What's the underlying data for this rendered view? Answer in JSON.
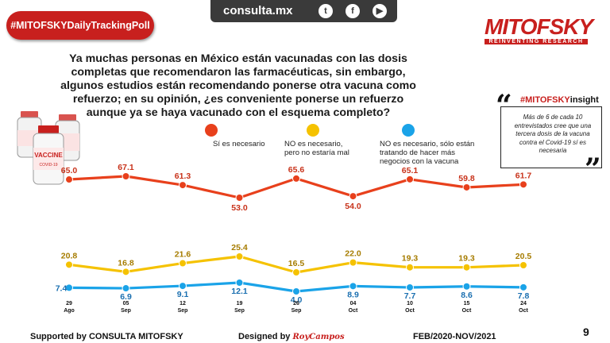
{
  "header": {
    "site": "consulta.mx",
    "social_icons": [
      "twitter-icon",
      "facebook-icon",
      "youtube-icon"
    ],
    "social_glyphs": [
      "t",
      "f",
      "▶"
    ],
    "hashtag": "#MITOFSKYDailyTrackingPoll",
    "brand_name": "MITOFSKY",
    "brand_tagline": "REINVENTING RESEARCH"
  },
  "question": "Ya muchas personas en México están vacunadas con las dosis completas que recomendaron las farmacéuticas, sin embargo, algunos estudios están recomendando ponerse otra vacuna como refuerzo; en su opinión, ¿es conveniente ponerse un refuerzo aunque ya se haya vacunado con el esquema completo?",
  "insight": {
    "label_prefix": "#MITOFSKY",
    "label_suffix": "insight",
    "text": "Más de 6 de cada 10 entrevistados cree que una tercera dosis de la vacuna contra el Covid-19 sí es necesaria"
  },
  "vaccine_label": "VACCINE",
  "vaccine_sub": "COVID-19",
  "colors": {
    "red": "#e8401c",
    "yellow": "#f5c200",
    "blue": "#1aa3e8",
    "brand": "#c8201e"
  },
  "chart_data": {
    "type": "line",
    "categories": [
      {
        "day": "29",
        "month": "Ago"
      },
      {
        "day": "05",
        "month": "Sep"
      },
      {
        "day": "12",
        "month": "Sep"
      },
      {
        "day": "19",
        "month": "Sep"
      },
      {
        "day": "26",
        "month": "Sep"
      },
      {
        "day": "04",
        "month": "Oct"
      },
      {
        "day": "10",
        "month": "Oct"
      },
      {
        "day": "15",
        "month": "Oct"
      },
      {
        "day": "24",
        "month": "Oct"
      }
    ],
    "series": [
      {
        "name": "Sí es necesario",
        "color": "#e8401c",
        "values": [
          65.0,
          67.1,
          61.3,
          53.0,
          65.6,
          54.0,
          65.1,
          59.8,
          61.7
        ],
        "labels": [
          "65.0",
          "67.1",
          "61.3",
          "53.0",
          "65.6",
          "54.0",
          "65.1",
          "59.8",
          "61.7"
        ]
      },
      {
        "name": "NO es necesario, pero no estaría mal",
        "color": "#f5c200",
        "values": [
          20.8,
          16.8,
          21.6,
          25.4,
          16.5,
          22.0,
          19.3,
          19.3,
          20.5
        ],
        "labels": [
          "20.8",
          "16.8",
          "21.6",
          "25.4",
          "16.5",
          "22.0",
          "19.3",
          "19.3",
          "20.5"
        ]
      },
      {
        "name": "NO es necesario, sólo están tratando de hacer más negocios con la vacuna",
        "color": "#1aa3e8",
        "values": [
          7.4,
          6.9,
          9.1,
          12.1,
          4.0,
          8.9,
          7.7,
          8.6,
          7.8
        ],
        "labels": [
          "7.4",
          "6.9",
          "9.1",
          "12.1",
          "4.0",
          "8.9",
          "7.7",
          "8.6",
          "7.8"
        ]
      }
    ],
    "legend": [
      {
        "text": "Sí es necesario",
        "color": "#e8401c"
      },
      {
        "text": "NO es necesario, pero no estaría mal",
        "color": "#f5c200"
      },
      {
        "text": "NO es necesario, sólo están tratando de hacer más negocios con la vacuna",
        "color": "#1aa3e8"
      }
    ]
  },
  "footer": {
    "supported": "Supported by   CONSULTA   MITOFSKY",
    "designed": "Designed by",
    "designer": "RoyCampos",
    "period": "FEB/2020-NOV/2021",
    "page": "9"
  }
}
